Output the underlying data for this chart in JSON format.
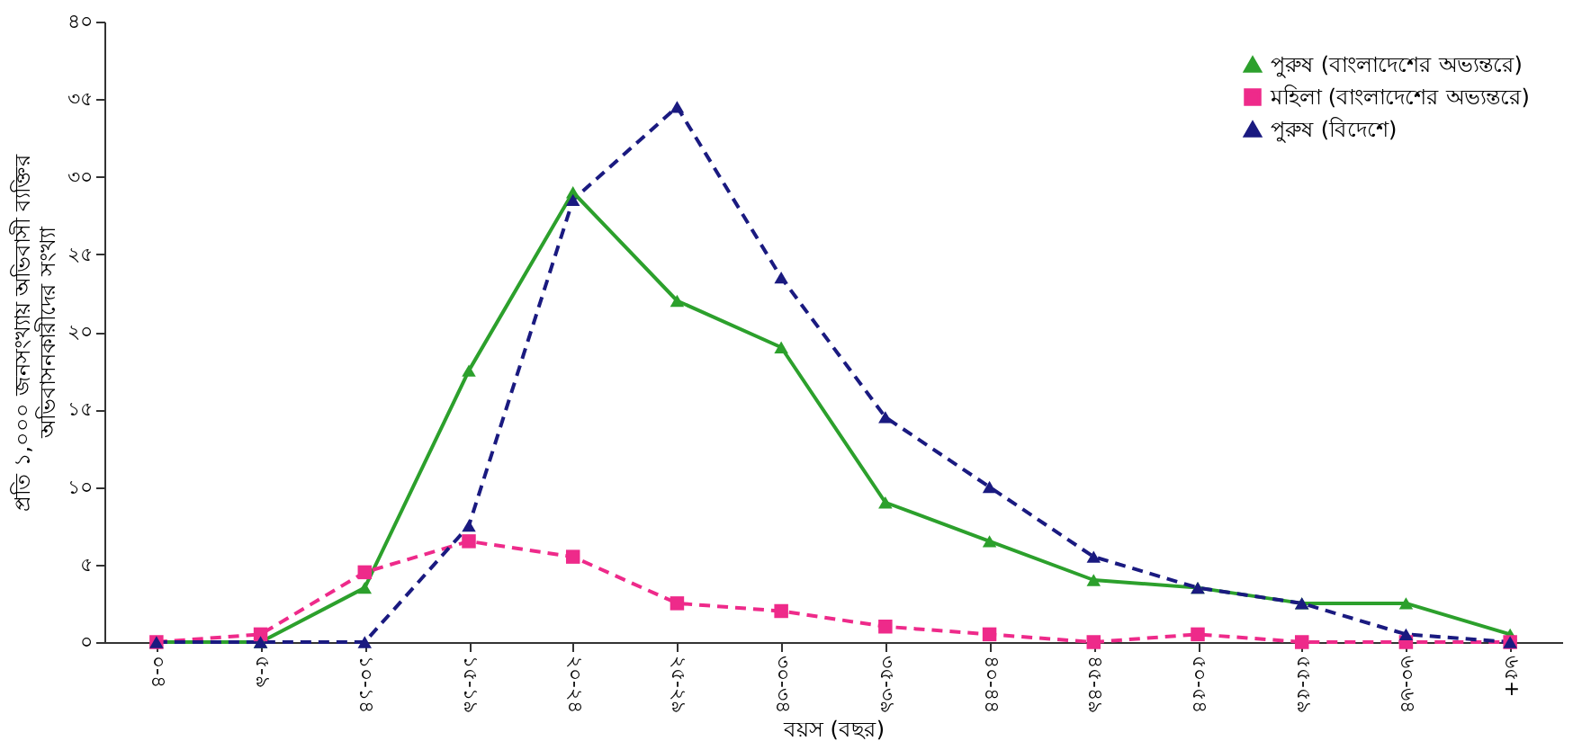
{
  "chart_data": {
    "type": "line",
    "xlabel": "বয়স (বছর)",
    "ylabel": "প্রতি ১,০০০ জনসংখ্যায় অভিবাসী ব্যক্তির\nঅভিবাসনকারীদের সংখ্যা",
    "categories": [
      "০-৪",
      "৫-৯",
      "১০-১৪",
      "১৫-১৯",
      "২০-২৪",
      "২৫-২৯",
      "৩০-৩৪",
      "৩৫-৩৯",
      "৪০-৪৪",
      "৪৫-৪৯",
      "৫০-৫৪",
      "৫৫-৫৯",
      "৬০-৬৪",
      "৬৫+"
    ],
    "series": [
      {
        "name": "পুরুষ (বাংলাদেশের অভ্যন্তরে)",
        "color": "#2ca02c",
        "marker": "triangle",
        "line_style": "solid",
        "values": [
          0,
          0,
          3.5,
          17.5,
          29,
          22,
          19,
          9,
          6.5,
          4,
          3.5,
          2.5,
          2.5,
          0.5
        ]
      },
      {
        "name": "মহিলা (বাংলাদেশের অভ্যন্তরে)",
        "color": "#ee2a8a",
        "marker": "square",
        "line_style": "dashed",
        "values": [
          0,
          0.5,
          4.5,
          6.5,
          5.5,
          2.5,
          2,
          1,
          0.5,
          0,
          0.5,
          0,
          0,
          0
        ]
      },
      {
        "name": "পুরুষ (বিদেশে)",
        "color": "#1a1a80",
        "marker": "triangle",
        "line_style": "dashed",
        "values": [
          0,
          0,
          0,
          7.5,
          28.5,
          34.5,
          23.5,
          14.5,
          10,
          5.5,
          3.5,
          2.5,
          0.5,
          0
        ]
      }
    ],
    "ylim": [
      0,
      40
    ],
    "yticks": [
      {
        "value": 0,
        "label": "০"
      },
      {
        "value": 5,
        "label": "৫"
      },
      {
        "value": 10,
        "label": "১০"
      },
      {
        "value": 15,
        "label": "১৫"
      },
      {
        "value": 20,
        "label": "২০"
      },
      {
        "value": 25,
        "label": "২৫"
      },
      {
        "value": 30,
        "label": "৩০"
      },
      {
        "value": 35,
        "label": "৩৫"
      },
      {
        "value": 40,
        "label": "৪০"
      }
    ],
    "grid": false,
    "legend": "top right"
  }
}
